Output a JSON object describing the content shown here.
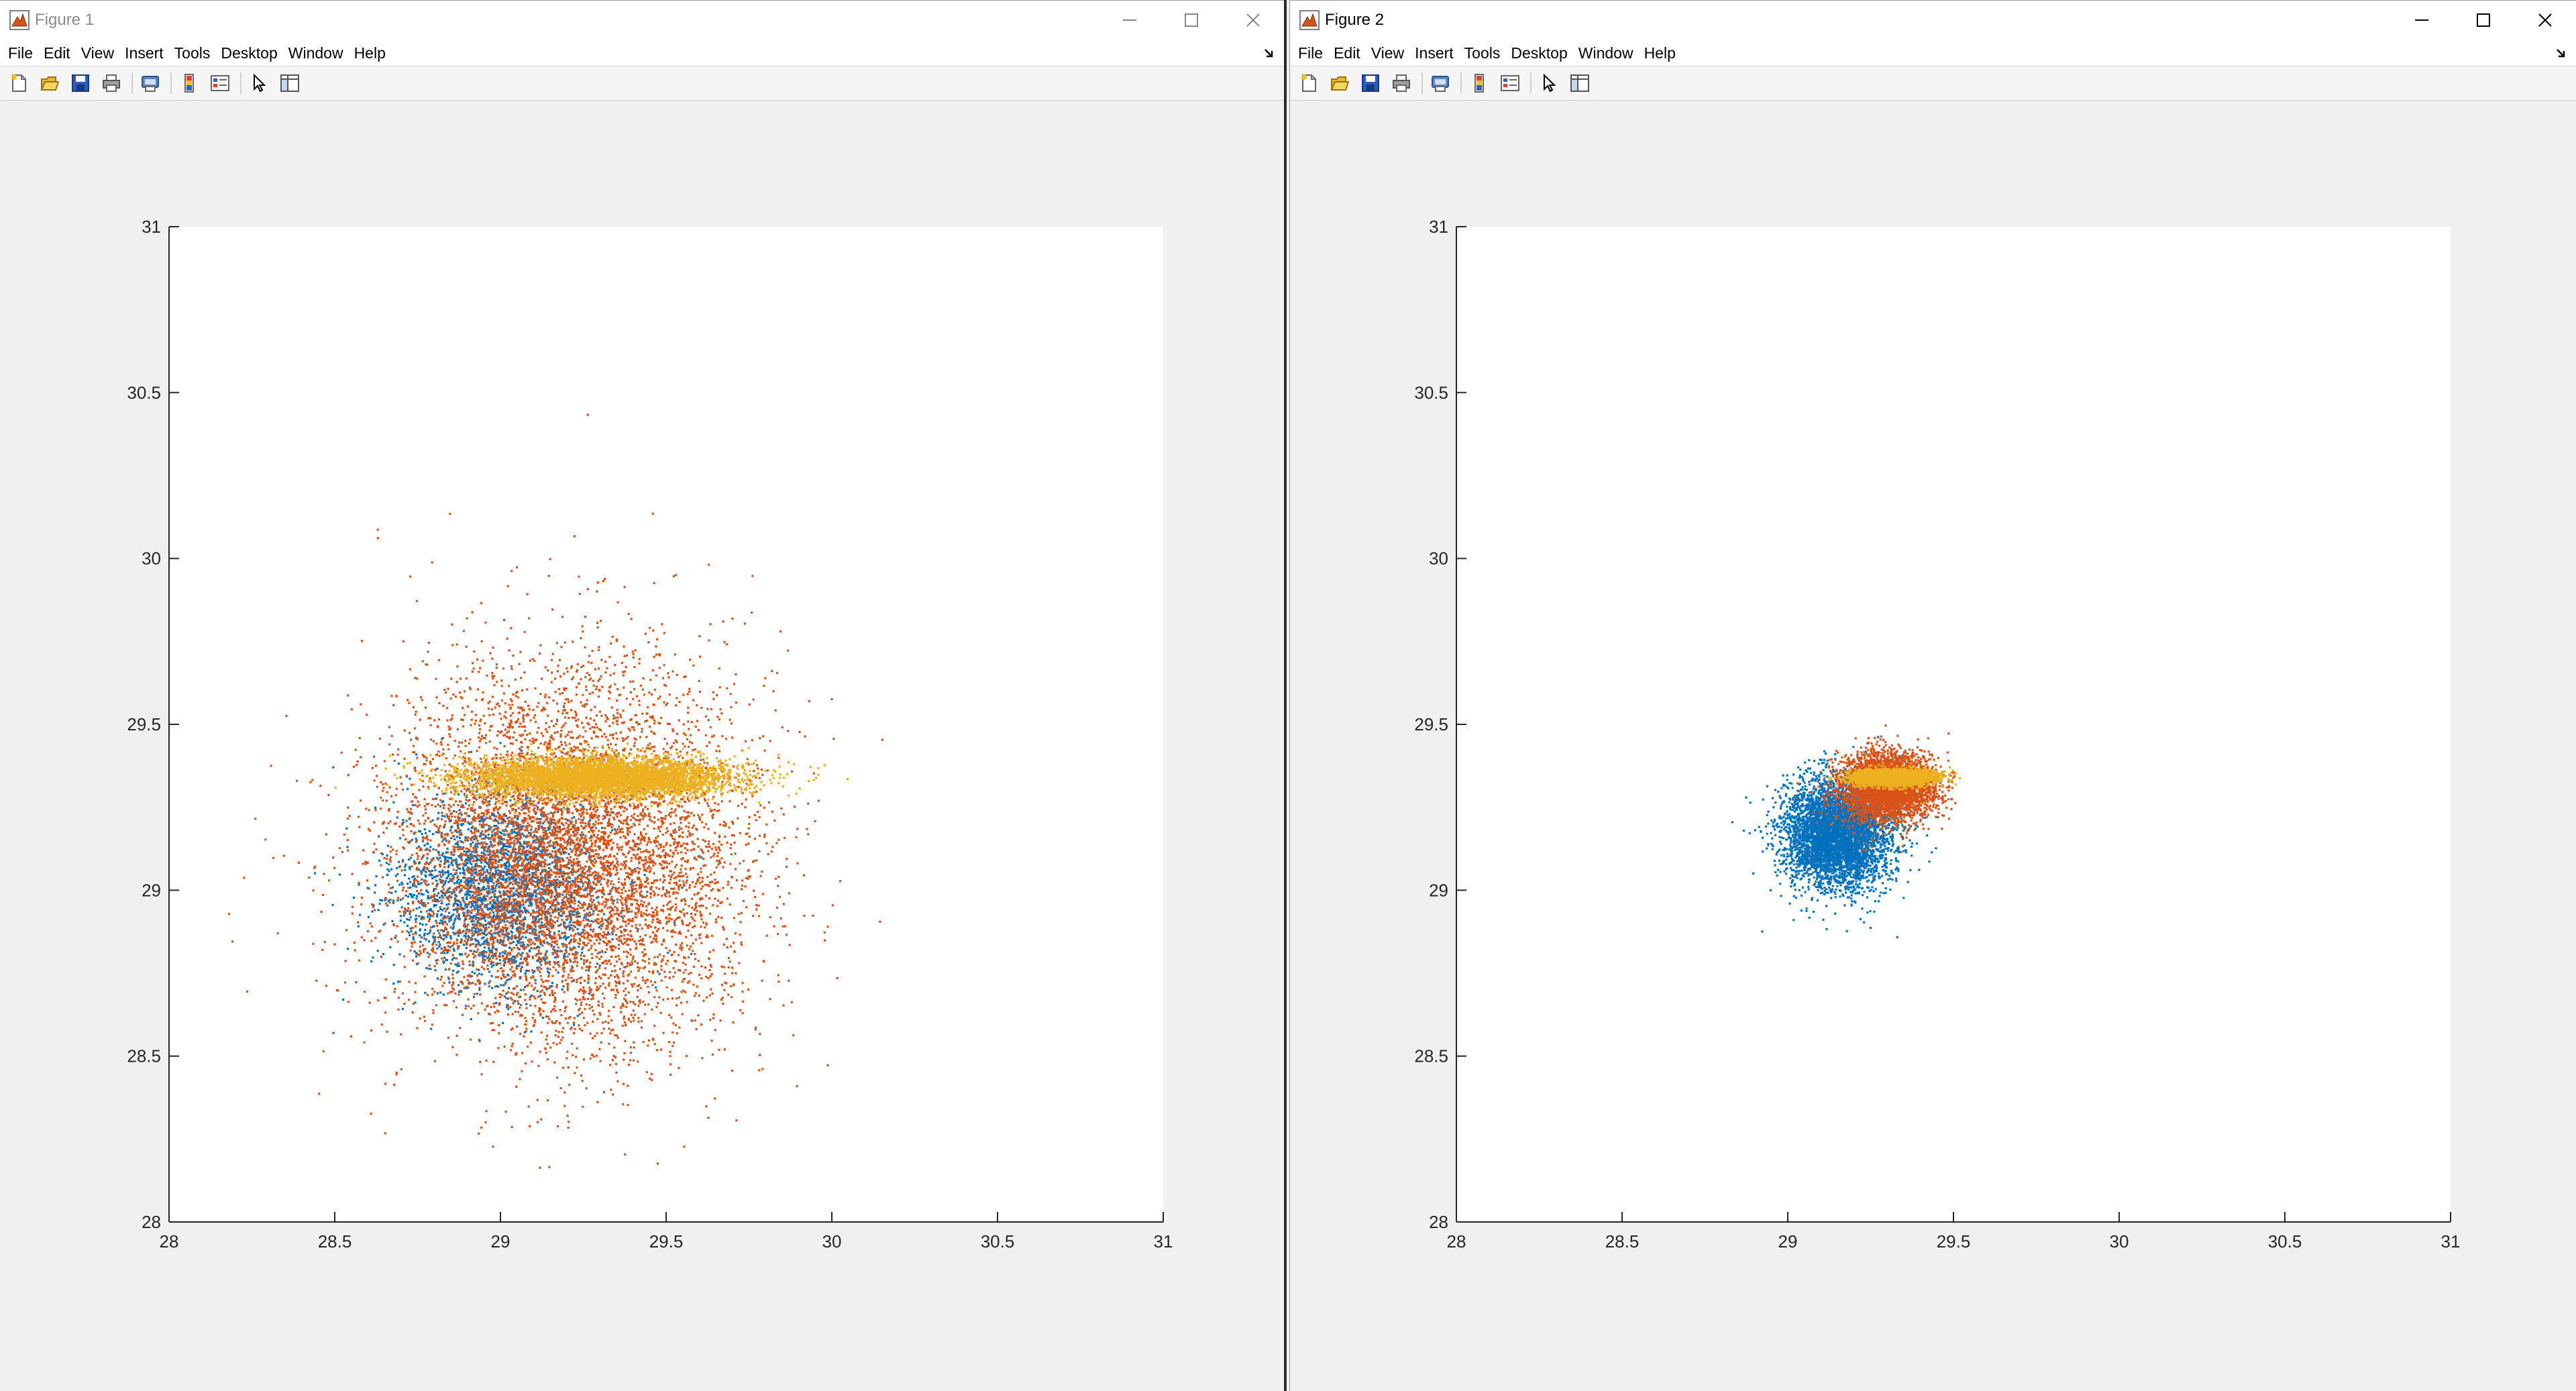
{
  "windows": [
    {
      "title": "Figure 1",
      "active": false,
      "menus": [
        "File",
        "Edit",
        "View",
        "Insert",
        "Tools",
        "Desktop",
        "Window",
        "Help"
      ]
    },
    {
      "title": "Figure 2",
      "active": true,
      "menus": [
        "File",
        "Edit",
        "View",
        "Insert",
        "Tools",
        "Desktop",
        "Window",
        "Help"
      ]
    }
  ],
  "toolbar_icons": [
    "new-figure-icon",
    "open-file-icon",
    "save-icon",
    "print-icon",
    "print-preview-icon",
    "colorbar-icon",
    "legend-icon",
    "pointer-icon",
    "property-editor-icon"
  ],
  "series_colors": {
    "blue": "#0072bd",
    "orange": "#d95319",
    "yellow": "#edb120"
  },
  "chart_data": [
    {
      "type": "scatter",
      "title": "",
      "xlabel": "",
      "ylabel": "",
      "xlim": [
        28,
        31
      ],
      "ylim": [
        28,
        31
      ],
      "xticks": [
        "28",
        "28.5",
        "29",
        "29.5",
        "30",
        "30.5",
        "31"
      ],
      "yticks": [
        "28",
        "28.5",
        "29",
        "29.5",
        "30",
        "30.5",
        "31"
      ],
      "grid": false,
      "series": [
        {
          "color": "#0072bd",
          "points": 2500,
          "center": [
            29.0,
            29.0
          ],
          "spread": [
            0.16,
            0.14
          ]
        },
        {
          "color": "#d95319",
          "points": 7000,
          "center": [
            29.2,
            29.1
          ],
          "spread": [
            0.27,
            0.28
          ]
        },
        {
          "color": "#edb120",
          "points": 5000,
          "center": [
            29.3,
            29.34
          ],
          "spread": [
            0.2,
            0.03
          ]
        }
      ]
    },
    {
      "type": "scatter",
      "title": "",
      "xlabel": "",
      "ylabel": "",
      "xlim": [
        28,
        31
      ],
      "ylim": [
        28,
        31
      ],
      "xticks": [
        "28",
        "28.5",
        "29",
        "29.5",
        "30",
        "30.5",
        "31"
      ],
      "yticks": [
        "28",
        "28.5",
        "29",
        "29.5",
        "30",
        "30.5",
        "31"
      ],
      "grid": false,
      "series": [
        {
          "color": "#0072bd",
          "points": 5000,
          "center": [
            29.15,
            29.17
          ],
          "spread": [
            0.08,
            0.08
          ]
        },
        {
          "color": "#d95319",
          "points": 4000,
          "center": [
            29.3,
            29.31
          ],
          "spread": [
            0.07,
            0.05
          ]
        },
        {
          "color": "#edb120",
          "points": 3000,
          "center": [
            29.32,
            29.34
          ],
          "spread": [
            0.06,
            0.012
          ]
        }
      ]
    }
  ]
}
